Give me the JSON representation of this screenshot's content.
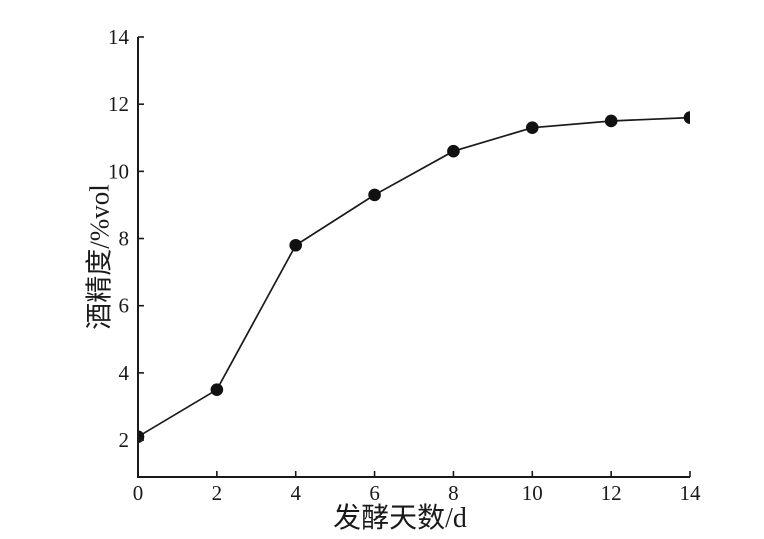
{
  "figure": {
    "background": "#ffffff",
    "ink_color": "#1a1a1a"
  },
  "chart_data": {
    "type": "line",
    "title": "",
    "xlabel": "发酵天数/d",
    "ylabel": "酒精度/%vol",
    "x": [
      0,
      2,
      4,
      6,
      8,
      10,
      12,
      14
    ],
    "series": [
      {
        "name": "酒精度",
        "values": [
          2.1,
          3.5,
          7.8,
          9.3,
          10.6,
          11.3,
          11.5,
          11.6
        ]
      }
    ],
    "x_ticks": [
      "0",
      "2",
      "4",
      "6",
      "8",
      "10",
      "12",
      "14"
    ],
    "x_tick_values": [
      0,
      2,
      4,
      6,
      8,
      10,
      12,
      14
    ],
    "y_ticks": [
      "2",
      "4",
      "6",
      "8",
      "10",
      "12",
      "14"
    ],
    "y_tick_values": [
      2,
      4,
      6,
      8,
      10,
      12,
      14
    ],
    "xlim": [
      0,
      14
    ],
    "ylim": [
      0.9,
      14
    ],
    "grid": false,
    "legend": "none",
    "frame": "left-bottom-only",
    "tick_direction": "in",
    "marker": "filled-circle",
    "line_color": "#1a1a1a",
    "marker_color": "#111111",
    "tick_label_color": "#1a1a1a"
  }
}
